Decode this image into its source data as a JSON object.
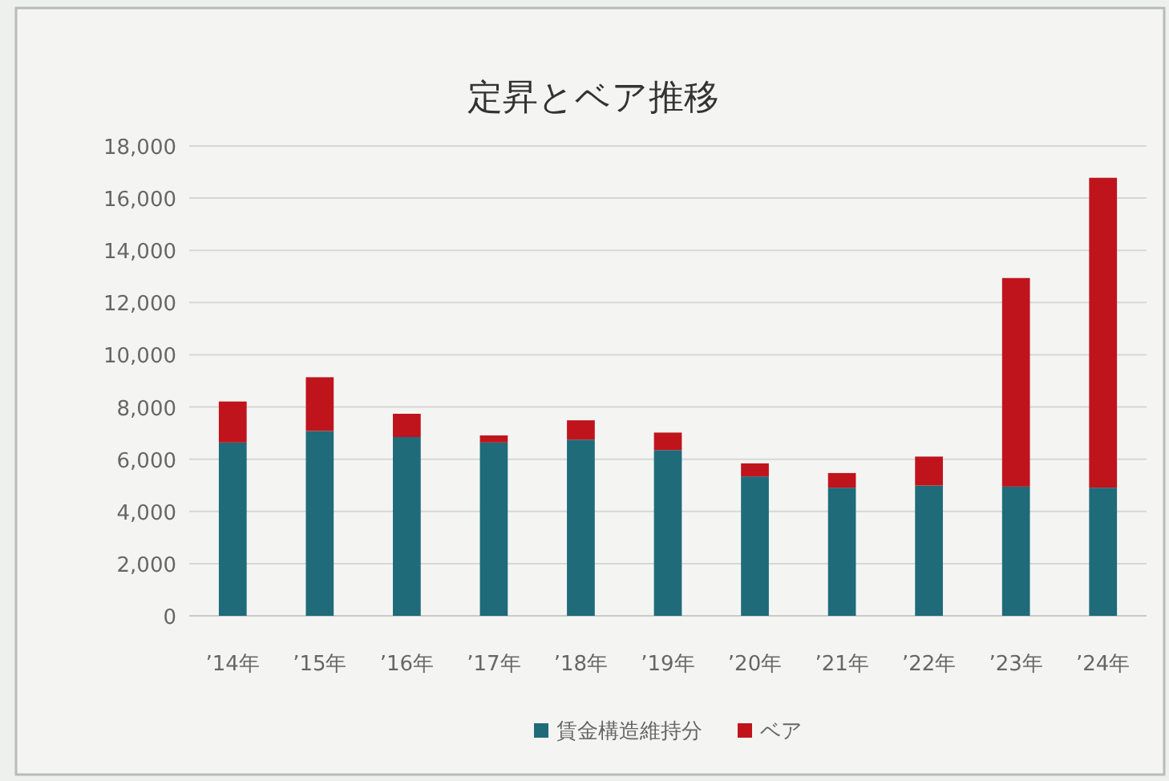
{
  "chart_data": {
    "type": "bar",
    "title": "定昇とベア推移",
    "stacked": true,
    "categories": [
      "’14年",
      "’15年",
      "’16年",
      "’17年",
      "’18年",
      "’19年",
      "’20年",
      "’21年",
      "’22年",
      "’23年",
      "’24年"
    ],
    "series": [
      {
        "name": "賃金構造維持分",
        "color": "#1f6b7a",
        "values": [
          6640,
          7080,
          6850,
          6640,
          6750,
          6350,
          5340,
          4910,
          4990,
          4950,
          4910
        ]
      },
      {
        "name": "ベア",
        "color": "#c0141c",
        "values": [
          1570,
          2060,
          890,
          270,
          740,
          670,
          500,
          560,
          1110,
          7990,
          11870
        ]
      }
    ],
    "ylim": [
      0,
      18000
    ],
    "yticks": [
      {
        "value": 0,
        "label": "0"
      },
      {
        "value": 2000,
        "label": "2,000"
      },
      {
        "value": 4000,
        "label": "4,000"
      },
      {
        "value": 6000,
        "label": "6,000"
      },
      {
        "value": 8000,
        "label": "8,000"
      },
      {
        "value": 10000,
        "label": "10,000"
      },
      {
        "value": 12000,
        "label": "12,000"
      },
      {
        "value": 14000,
        "label": "14,000"
      },
      {
        "value": 16000,
        "label": "16,000"
      },
      {
        "value": 18000,
        "label": "18,000"
      }
    ],
    "grid": "y",
    "legend": "bottom"
  }
}
